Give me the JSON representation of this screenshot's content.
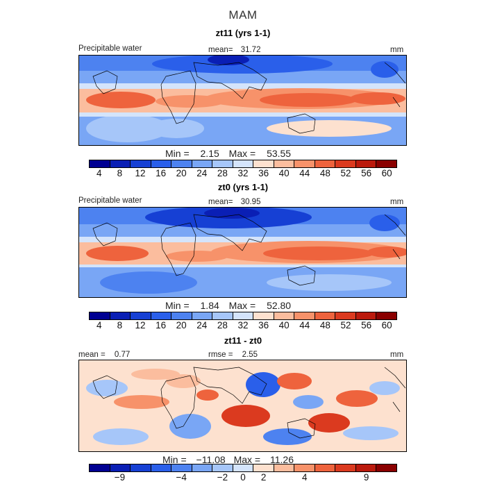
{
  "chart_data": {
    "type": "heatmap",
    "title": "MAM",
    "panels": [
      {
        "title": "zt11 (yrs 1-1)",
        "variable_label": "Precipitable water",
        "stat_label": "mean=",
        "stat_value": "31.72",
        "units": "mm",
        "min_label": "Min =",
        "min_value": "2.15",
        "max_label": "Max =",
        "max_value": "53.55",
        "colorbar_ticks": [
          "4",
          "8",
          "12",
          "16",
          "20",
          "24",
          "28",
          "32",
          "36",
          "40",
          "44",
          "48",
          "52",
          "56",
          "60"
        ],
        "colorbar_levels": [
          4,
          8,
          12,
          16,
          20,
          24,
          28,
          32,
          36,
          40,
          44,
          48,
          52,
          56,
          60
        ],
        "colors": [
          "#000092",
          "#0a1fb5",
          "#1640d4",
          "#2a5fea",
          "#4d82f0",
          "#79a6f5",
          "#a6c6f9",
          "#d4e4fb",
          "#fde1cf",
          "#fbbd9e",
          "#f7926a",
          "#ee633d",
          "#db3a1f",
          "#bb1a0d",
          "#8a0000"
        ]
      },
      {
        "title": "zt0 (yrs 1-1)",
        "variable_label": "Precipitable water",
        "stat_label": "mean=",
        "stat_value": "30.95",
        "units": "mm",
        "min_label": "Min =",
        "min_value": "1.84",
        "max_label": "Max =",
        "max_value": "52.80",
        "colorbar_ticks": [
          "4",
          "8",
          "12",
          "16",
          "20",
          "24",
          "28",
          "32",
          "36",
          "40",
          "44",
          "48",
          "52",
          "56",
          "60"
        ],
        "colorbar_levels": [
          4,
          8,
          12,
          16,
          20,
          24,
          28,
          32,
          36,
          40,
          44,
          48,
          52,
          56,
          60
        ],
        "colors": [
          "#000092",
          "#0a1fb5",
          "#1640d4",
          "#2a5fea",
          "#4d82f0",
          "#79a6f5",
          "#a6c6f9",
          "#d4e4fb",
          "#fde1cf",
          "#fbbd9e",
          "#f7926a",
          "#ee633d",
          "#db3a1f",
          "#bb1a0d",
          "#8a0000"
        ]
      },
      {
        "title": "zt11 - zt0",
        "mean_label": "mean =",
        "mean_value": "0.77",
        "rmse_label": "rmse =",
        "rmse_value": "2.55",
        "units": "mm",
        "min_label": "Min =",
        "min_value": "−11.08",
        "max_label": "Max =",
        "max_value": "11.26",
        "colorbar_ticks": [
          "−9",
          "−4",
          "−2",
          "0",
          "2",
          "4",
          "9"
        ],
        "colorbar_levels": [
          -9,
          -4,
          -2,
          0,
          2,
          4,
          9
        ],
        "colors": [
          "#000092",
          "#0a1fb5",
          "#1640d4",
          "#2a5fea",
          "#4d82f0",
          "#79a6f5",
          "#a6c6f9",
          "#d4e4fb",
          "#fde1cf",
          "#fbbd9e",
          "#f7926a",
          "#ee633d",
          "#db3a1f",
          "#bb1a0d",
          "#8a0000"
        ]
      }
    ]
  }
}
